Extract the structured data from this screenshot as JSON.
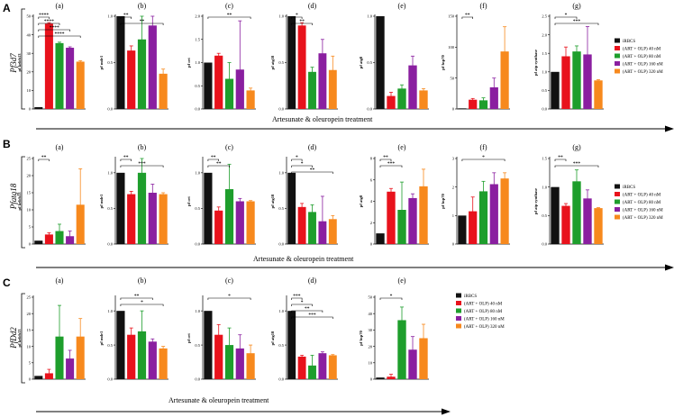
{
  "legend": {
    "entries": [
      "iRBCS",
      "(ART + OLP) 40 nM",
      "(ART + OLP) 80 nM",
      "(ART + OLP) 160 nM",
      "(ART + OLP) 320 nM"
    ],
    "colors": [
      "#111111",
      "#e8121c",
      "#1e9e2c",
      "#8a1fa0",
      "#f7891d"
    ]
  },
  "arrow_label": "Artesunate & oleuropein treatment",
  "chart_data": [
    {
      "panel": "A",
      "type": "bar",
      "gene": "Pf3d7",
      "categories": [
        "iRBCS",
        "(ART + OLP) 40 nM",
        "(ART + OLP) 80 nM",
        "(ART + OLP) 160 nM",
        "(ART + OLP) 320 nM"
      ],
      "charts": [
        {
          "label": "(a)",
          "ylabel": "pf kelch13",
          "ylim": [
            0,
            50
          ],
          "ticks": [
            "0",
            "10",
            "20",
            "30",
            "40",
            "50"
          ],
          "values": [
            1,
            46,
            35.5,
            33,
            25.5
          ],
          "errors": [
            0,
            0.5,
            0.5,
            0.5,
            0.5
          ],
          "sig": [
            {
              "a": 0,
              "b": 1,
              "t": "****"
            },
            {
              "a": 0,
              "b": 2,
              "t": "****"
            },
            {
              "a": 0,
              "b": 3,
              "t": "****"
            },
            {
              "a": 0,
              "b": 4,
              "t": "****"
            }
          ]
        },
        {
          "label": "(b)",
          "ylabel": "pf mdr1",
          "ylim": [
            0,
            1.0
          ],
          "ticks": [
            "0.0",
            "0.5",
            "1.0"
          ],
          "values": [
            1,
            0.63,
            0.75,
            0.9,
            0.38
          ],
          "errors": [
            0,
            0.05,
            0.3,
            0.2,
            0.05
          ],
          "sig": [
            {
              "a": 0,
              "b": 1,
              "t": "**"
            },
            {
              "a": 0,
              "b": 4,
              "t": "**"
            }
          ]
        },
        {
          "label": "(c)",
          "ylabel": "pf crt",
          "ylim": [
            0,
            2.0
          ],
          "ticks": [
            "0.0",
            "0.5",
            "1.0",
            "1.5",
            "2.0"
          ],
          "values": [
            1,
            1.15,
            0.65,
            0.85,
            0.4
          ],
          "errors": [
            0,
            0.05,
            0.35,
            1.05,
            0.05
          ],
          "sig": [
            {
              "a": 0,
              "b": 4,
              "t": "**"
            }
          ]
        },
        {
          "label": "(d)",
          "ylabel": "pf atg18",
          "ylim": [
            0,
            1.0
          ],
          "ticks": [
            "0.0",
            "0.5",
            "1.0"
          ],
          "values": [
            1,
            0.9,
            0.4,
            0.6,
            0.42
          ],
          "errors": [
            0,
            0.03,
            0.05,
            0.15,
            0.15
          ],
          "sig": [
            {
              "a": 0,
              "b": 1,
              "t": "*"
            },
            {
              "a": 0,
              "b": 2,
              "t": "**"
            }
          ]
        },
        {
          "label": "(e)",
          "ylabel": "pf atg8",
          "ylim": [
            0,
            1.0
          ],
          "ticks": [
            "0.0",
            "0.5",
            "1.0"
          ],
          "values": [
            1,
            0.14,
            0.22,
            0.47,
            0.2
          ],
          "errors": [
            0,
            0.04,
            0.04,
            0.1,
            0.02
          ],
          "sig": []
        },
        {
          "label": "(f)",
          "ylabel": "pf hsp70",
          "ylim": [
            0,
            150
          ],
          "ticks": [
            "0",
            "50",
            "100",
            "150"
          ],
          "values": [
            1,
            15,
            14,
            35,
            93
          ],
          "errors": [
            0,
            2,
            4,
            15,
            40
          ],
          "sig": [
            {
              "a": 0,
              "b": 1,
              "t": "**"
            }
          ]
        },
        {
          "label": "(g)",
          "ylabel": "pf atp synthase",
          "ylim": [
            0,
            2.5
          ],
          "ticks": [
            "0.0",
            "0.5",
            "1.0",
            "1.5",
            "2.0",
            "2.5"
          ],
          "values": [
            1,
            1.42,
            1.55,
            1.47,
            0.77
          ],
          "errors": [
            0,
            0.25,
            0.15,
            0.75,
            0.02
          ],
          "sig": [
            {
              "a": 0,
              "b": 2,
              "t": "*"
            },
            {
              "a": 0,
              "b": 4,
              "t": "***"
            }
          ]
        }
      ]
    },
    {
      "panel": "B",
      "type": "bar",
      "gene": "Pfatg18",
      "categories": [
        "iRBCS",
        "(ART + OLP) 40 nM",
        "(ART + OLP) 80 nM",
        "(ART + OLP) 160 nM",
        "(ART + OLP) 320 nM"
      ],
      "charts": [
        {
          "label": "(a)",
          "ylabel": "pf kelch13",
          "ylim": [
            0,
            25
          ],
          "ticks": [
            "0",
            "5",
            "10",
            "15",
            "20",
            "25"
          ],
          "values": [
            1,
            2.8,
            3.8,
            2.3,
            11.5
          ],
          "errors": [
            0,
            0.5,
            2,
            1.5,
            10.5
          ],
          "sig": [
            {
              "a": 0,
              "b": 1,
              "t": "**"
            }
          ]
        },
        {
          "label": "(b)",
          "ylabel": "pf mdr1",
          "ylim": [
            0,
            1.2
          ],
          "ticks": [
            "0.0",
            "0.5",
            "1.0"
          ],
          "values": [
            1,
            0.7,
            1.0,
            0.72,
            0.7
          ],
          "errors": [
            0,
            0.04,
            0.2,
            0.12,
            0.02
          ],
          "sig": [
            {
              "a": 0,
              "b": 1,
              "t": "**"
            },
            {
              "a": 0,
              "b": 4,
              "t": "***"
            }
          ]
        },
        {
          "label": "(c)",
          "ylabel": "pf crt",
          "ylim": [
            0,
            1.2
          ],
          "ticks": [
            "0.0",
            "0.5",
            "1.0"
          ],
          "values": [
            1,
            0.47,
            0.77,
            0.6,
            0.6
          ],
          "errors": [
            0,
            0.05,
            0.35,
            0.04,
            0.01
          ],
          "sig": [
            {
              "a": 0,
              "b": 1,
              "t": "**"
            },
            {
              "a": 0,
              "b": 2,
              "t": "**"
            }
          ]
        },
        {
          "label": "(d)",
          "ylabel": "pf atg18",
          "ylim": [
            0,
            1.2
          ],
          "ticks": [
            "0.0",
            "0.5",
            "1.0"
          ],
          "values": [
            1,
            0.52,
            0.45,
            0.32,
            0.35
          ],
          "errors": [
            0,
            0.05,
            0.1,
            0.35,
            0.05
          ],
          "sig": [
            {
              "a": 0,
              "b": 1,
              "t": "*"
            },
            {
              "a": 0,
              "b": 2,
              "t": "*"
            },
            {
              "a": 0,
              "b": 4,
              "t": "**"
            }
          ]
        },
        {
          "label": "(e)",
          "ylabel": "pf atg8",
          "ylim": [
            0,
            8
          ],
          "ticks": [
            "0",
            "2",
            "4",
            "6",
            "8"
          ],
          "values": [
            1,
            4.9,
            3.2,
            4.3,
            5.4
          ],
          "errors": [
            0,
            0.3,
            2.6,
            0.4,
            1.6
          ],
          "sig": [
            {
              "a": 0,
              "b": 1,
              "t": "**"
            },
            {
              "a": 0,
              "b": 2,
              "t": "***"
            }
          ]
        },
        {
          "label": "(f)",
          "ylabel": "pf hsp70",
          "ylim": [
            0,
            3
          ],
          "ticks": [
            "0",
            "1",
            "2",
            "3"
          ],
          "values": [
            1,
            1.15,
            1.85,
            2.1,
            2.3
          ],
          "errors": [
            0,
            0.5,
            0.35,
            0.4,
            0.2
          ],
          "sig": [
            {
              "a": 0,
              "b": 4,
              "t": "*"
            }
          ]
        },
        {
          "label": "(g)",
          "ylabel": "pf atp synthase",
          "ylim": [
            0,
            1.5
          ],
          "ticks": [
            "0.0",
            "0.5",
            "1.0",
            "1.5"
          ],
          "values": [
            1,
            0.67,
            1.1,
            0.8,
            0.63
          ],
          "errors": [
            0,
            0.04,
            0.2,
            0.15,
            0.01
          ],
          "sig": [
            {
              "a": 0,
              "b": 1,
              "t": "**"
            },
            {
              "a": 0,
              "b": 4,
              "t": "***"
            }
          ]
        }
      ]
    },
    {
      "panel": "C",
      "type": "bar",
      "gene": "PfDd2",
      "categories": [
        "iRBCS",
        "(ART + OLP) 40 nM",
        "(ART + OLP) 80 nM",
        "(ART + OLP) 160 nM",
        "(ART + OLP) 320 nM"
      ],
      "charts": [
        {
          "label": "(a)",
          "ylabel": "pf kelch13",
          "ylim": [
            0,
            25
          ],
          "ticks": [
            "0",
            "5",
            "10",
            "15",
            "20",
            "25"
          ],
          "values": [
            1,
            1.8,
            13,
            6.3,
            13
          ],
          "errors": [
            0,
            1.2,
            9.5,
            2.5,
            5.5
          ],
          "sig": []
        },
        {
          "label": "(b)",
          "ylabel": "pf mdr1",
          "ylim": [
            0,
            1.2
          ],
          "ticks": [
            "0.0",
            "0.5",
            "1.0"
          ],
          "values": [
            1,
            0.65,
            0.7,
            0.55,
            0.45
          ],
          "errors": [
            0,
            0.1,
            0.3,
            0.04,
            0.03
          ],
          "sig": [
            {
              "a": 0,
              "b": 3,
              "t": "**"
            },
            {
              "a": 0,
              "b": 4,
              "t": "*"
            }
          ]
        },
        {
          "label": "(c)",
          "ylabel": "pf crt",
          "ylim": [
            0,
            1.2
          ],
          "ticks": [
            "0.0",
            "0.5",
            "1.0"
          ],
          "values": [
            1,
            0.65,
            0.5,
            0.45,
            0.38
          ],
          "errors": [
            0,
            0.15,
            0.25,
            0.2,
            0.12
          ],
          "sig": [
            {
              "a": 0,
              "b": 4,
              "t": "*"
            }
          ]
        },
        {
          "label": "(d)",
          "ylabel": "pf atg18",
          "ylim": [
            0,
            1.2
          ],
          "ticks": [
            "0.0",
            "0.5",
            "1.0"
          ],
          "values": [
            1,
            0.33,
            0.2,
            0.38,
            0.35
          ],
          "errors": [
            0,
            0.02,
            0.15,
            0.02,
            0.01
          ],
          "sig": [
            {
              "a": 0,
              "b": 1,
              "t": "***"
            },
            {
              "a": 0,
              "b": 2,
              "t": "*"
            },
            {
              "a": 0,
              "b": 3,
              "t": "**"
            },
            {
              "a": 0,
              "b": 4,
              "t": "***"
            }
          ]
        },
        {
          "label": "(e)",
          "ylabel": "pf hsp70",
          "ylim": [
            0,
            50
          ],
          "ticks": [
            "0",
            "10",
            "20",
            "30",
            "40",
            "50"
          ],
          "values": [
            1,
            1.5,
            36,
            18,
            25
          ],
          "errors": [
            0,
            1.5,
            8,
            8,
            8.5
          ],
          "sig": [
            {
              "a": 0,
              "b": 2,
              "t": "*"
            }
          ]
        }
      ]
    }
  ]
}
